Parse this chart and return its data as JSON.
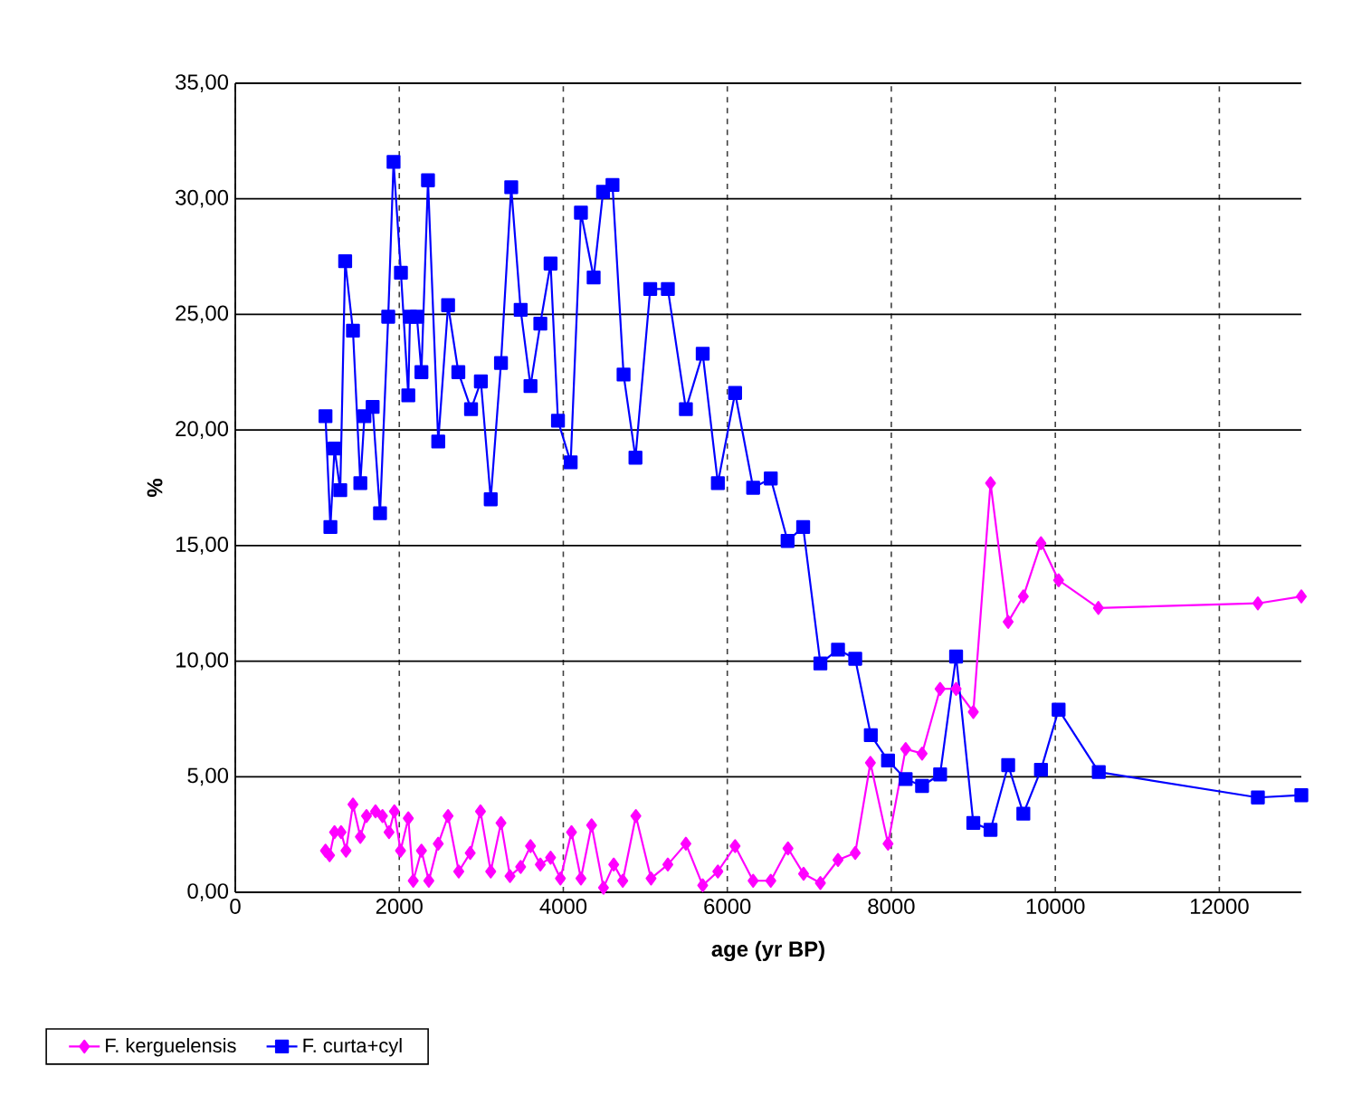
{
  "chart_data": {
    "type": "line",
    "xlabel": "age (yr BP)",
    "ylabel": "%",
    "xlim": [
      0,
      13000
    ],
    "xticks": [
      0,
      2000,
      4000,
      6000,
      8000,
      10000,
      12000
    ],
    "ylim": [
      0,
      35
    ],
    "yticks": [
      {
        "value": 0,
        "label": "0,00"
      },
      {
        "value": 5,
        "label": "5,00"
      },
      {
        "value": 10,
        "label": "10,00"
      },
      {
        "value": 15,
        "label": "15,00"
      },
      {
        "value": 20,
        "label": "20,00"
      },
      {
        "value": 25,
        "label": "25,00"
      },
      {
        "value": 30,
        "label": "30,00"
      },
      {
        "value": 35,
        "label": "35,00"
      }
    ],
    "grid": true,
    "legend": "bottom left",
    "line_style": "solid",
    "series": [
      {
        "name": "F. kerguelensis",
        "color": "#ff00ff",
        "marker": "diamond",
        "x": [
          1100,
          1150,
          1210,
          1290,
          1350,
          1435,
          1525,
          1600,
          1710,
          1795,
          1875,
          1940,
          2015,
          2110,
          2170,
          2270,
          2360,
          2475,
          2595,
          2725,
          2865,
          2990,
          3115,
          3240,
          3350,
          3480,
          3600,
          3720,
          3845,
          3965,
          4100,
          4215,
          4345,
          4490,
          4615,
          4725,
          4885,
          5070,
          5275,
          5495,
          5700,
          5885,
          6095,
          6315,
          6530,
          6740,
          6930,
          7135,
          7350,
          7560,
          7745,
          7960,
          8175,
          8375,
          8595,
          8790,
          9000,
          9210,
          9425,
          9610,
          9825,
          10040,
          10525,
          12470,
          13000
        ],
        "values": [
          1.8,
          1.6,
          2.6,
          2.6,
          1.8,
          3.8,
          2.4,
          3.3,
          3.5,
          3.3,
          2.6,
          3.5,
          1.8,
          3.2,
          0.5,
          1.8,
          0.5,
          2.1,
          3.3,
          0.9,
          1.7,
          3.5,
          0.9,
          3.0,
          0.7,
          1.1,
          2.0,
          1.2,
          1.5,
          0.6,
          2.6,
          0.6,
          2.9,
          0.2,
          1.2,
          0.5,
          3.3,
          0.6,
          1.2,
          2.1,
          0.3,
          0.9,
          2.0,
          0.5,
          0.5,
          1.9,
          0.8,
          0.4,
          1.4,
          1.7,
          5.6,
          2.1,
          6.2,
          6.0,
          8.8,
          8.8,
          7.8,
          17.7,
          11.7,
          12.8,
          15.1,
          13.5,
          12.3,
          12.5,
          12.8
        ]
      },
      {
        "name": "F. curta+cyl",
        "color": "#0000ff",
        "marker": "square",
        "x": [
          1100,
          1160,
          1210,
          1280,
          1340,
          1435,
          1525,
          1575,
          1675,
          1765,
          1865,
          1930,
          2020,
          2110,
          2130,
          2215,
          2270,
          2350,
          2475,
          2595,
          2720,
          2875,
          2995,
          3115,
          3240,
          3365,
          3480,
          3600,
          3720,
          3845,
          3935,
          4090,
          4215,
          4370,
          4485,
          4600,
          4735,
          4880,
          5060,
          5275,
          5495,
          5700,
          5885,
          6095,
          6315,
          6530,
          6735,
          6925,
          7135,
          7350,
          7560,
          7750,
          7960,
          8175,
          8375,
          8595,
          8790,
          9000,
          9210,
          9425,
          9610,
          9825,
          10040,
          10530,
          12470,
          13000
        ],
        "values": [
          20.6,
          15.8,
          19.2,
          17.4,
          27.3,
          24.3,
          17.7,
          20.6,
          21.0,
          16.4,
          24.9,
          31.6,
          26.8,
          21.5,
          24.9,
          24.9,
          22.5,
          30.8,
          19.5,
          25.4,
          22.5,
          20.9,
          22.1,
          17.0,
          22.9,
          30.5,
          25.2,
          21.9,
          24.6,
          27.2,
          20.4,
          18.6,
          29.4,
          26.6,
          30.3,
          30.6,
          22.4,
          18.8,
          26.1,
          26.1,
          20.9,
          23.3,
          17.7,
          21.6,
          17.5,
          17.9,
          15.2,
          15.8,
          9.9,
          10.5,
          10.1,
          6.8,
          5.7,
          4.9,
          4.6,
          5.1,
          10.2,
          3.0,
          2.7,
          5.5,
          3.4,
          5.3,
          7.9,
          5.2,
          4.1,
          4.2
        ]
      }
    ]
  }
}
